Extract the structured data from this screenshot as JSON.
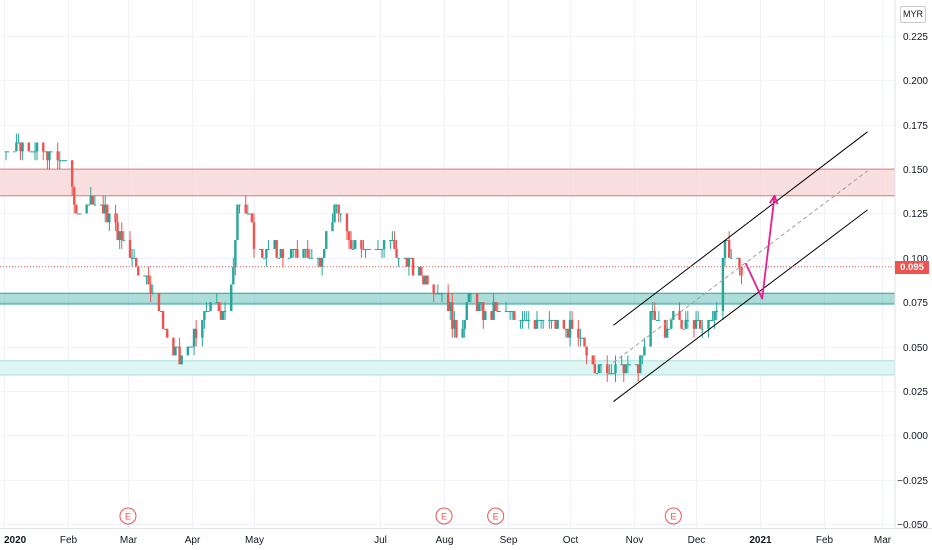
{
  "currency": "MYR",
  "last_price_label": "0.095",
  "colors": {
    "up": "#26a69a",
    "down": "#ef5350",
    "resistance_zone": "#f8d4d6",
    "resistance_line": "#e57373",
    "support_zone": "#26a69a",
    "low_support_zone": "#ddf5f3",
    "channel": "#000000",
    "arrow": "#e91e8c",
    "last_price": "#ef5350",
    "earnings_marker": "#ef5350"
  },
  "chart_data": {
    "type": "candlestick",
    "ylim": [
      -0.05,
      0.235
    ],
    "y_ticks": [
      "0.225",
      "0.200",
      "0.175",
      "0.150",
      "0.125",
      "0.100",
      "0.075",
      "0.050",
      "0.025",
      "0.000",
      "−0.025",
      "−0.050"
    ],
    "y_tick_values": [
      0.225,
      0.2,
      0.175,
      0.15,
      0.125,
      0.1,
      0.075,
      0.05,
      0.025,
      0.0,
      -0.025,
      -0.05
    ],
    "x_ticks": [
      "2020",
      "Feb",
      "Mar",
      "Apr",
      "May",
      "Jul",
      "Aug",
      "Sep",
      "Oct",
      "Nov",
      "Dec",
      "2021",
      "Feb",
      "Mar"
    ],
    "x_tick_dates": [
      "2020-01-01",
      "2020-02-01",
      "2020-03-01",
      "2020-04-01",
      "2020-05-01",
      "2020-07-01",
      "2020-08-01",
      "2020-09-01",
      "2020-10-01",
      "2020-11-01",
      "2020-12-01",
      "2021-01-01",
      "2021-02-01",
      "2021-03-01"
    ],
    "last_price": 0.095,
    "earnings_markers": [
      {
        "label": "E",
        "date": "2020-03-01"
      },
      {
        "label": "E",
        "date": "2020-08-01"
      },
      {
        "label": "E",
        "date": "2020-08-26"
      },
      {
        "label": "E",
        "date": "2020-11-20"
      }
    ],
    "zones": [
      {
        "name": "resistance",
        "from": 0.135,
        "to": 0.15
      },
      {
        "name": "support",
        "from": 0.074,
        "to": 0.08
      },
      {
        "name": "low-support",
        "from": 0.034,
        "to": 0.042
      }
    ],
    "channel": {
      "start_date": "2020-10-22",
      "end_date": "2021-02-22",
      "upper": [
        0.062,
        0.171
      ],
      "middle": [
        0.041,
        0.149
      ],
      "lower": [
        0.019,
        0.127
      ]
    },
    "projection_arrow": [
      {
        "date": "2020-12-25",
        "price": 0.097
      },
      {
        "date": "2021-01-02",
        "price": 0.077
      },
      {
        "date": "2021-01-08",
        "price": 0.135
      }
    ],
    "price_path": [
      [
        "2020-01-02",
        0.16
      ],
      [
        "2020-01-08",
        0.165
      ],
      [
        "2020-01-15",
        0.16
      ],
      [
        "2020-01-24",
        0.158
      ],
      [
        "2020-01-31",
        0.153
      ],
      [
        "2020-02-03",
        0.14
      ],
      [
        "2020-02-06",
        0.12
      ],
      [
        "2020-02-10",
        0.135
      ],
      [
        "2020-02-16",
        0.13
      ],
      [
        "2020-02-22",
        0.12
      ],
      [
        "2020-02-29",
        0.108
      ],
      [
        "2020-03-07",
        0.094
      ],
      [
        "2020-03-12",
        0.085
      ],
      [
        "2020-03-17",
        0.065
      ],
      [
        "2020-03-22",
        0.05
      ],
      [
        "2020-03-26",
        0.042
      ],
      [
        "2020-03-30",
        0.05
      ],
      [
        "2020-04-03",
        0.056
      ],
      [
        "2020-04-08",
        0.07
      ],
      [
        "2020-04-18",
        0.07
      ],
      [
        "2020-04-21",
        0.09
      ],
      [
        "2020-04-23",
        0.135
      ],
      [
        "2020-04-28",
        0.125
      ],
      [
        "2020-05-03",
        0.1
      ],
      [
        "2020-05-10",
        0.105
      ],
      [
        "2020-05-17",
        0.1
      ],
      [
        "2020-05-25",
        0.105
      ],
      [
        "2020-06-01",
        0.097
      ],
      [
        "2020-06-06",
        0.115
      ],
      [
        "2020-06-10",
        0.13
      ],
      [
        "2020-06-15",
        0.11
      ],
      [
        "2020-06-22",
        0.108
      ],
      [
        "2020-06-30",
        0.105
      ],
      [
        "2020-07-05",
        0.11
      ],
      [
        "2020-07-10",
        0.1
      ],
      [
        "2020-07-16",
        0.096
      ],
      [
        "2020-07-22",
        0.088
      ],
      [
        "2020-07-28",
        0.082
      ],
      [
        "2020-08-03",
        0.075
      ],
      [
        "2020-08-07",
        0.055
      ],
      [
        "2020-08-11",
        0.068
      ],
      [
        "2020-08-14",
        0.08
      ],
      [
        "2020-08-20",
        0.07
      ],
      [
        "2020-08-27",
        0.069
      ],
      [
        "2020-09-06",
        0.067
      ],
      [
        "2020-09-14",
        0.065
      ],
      [
        "2020-09-22",
        0.063
      ],
      [
        "2020-10-01",
        0.06
      ],
      [
        "2020-10-06",
        0.052
      ],
      [
        "2020-10-11",
        0.044
      ],
      [
        "2020-10-15",
        0.038
      ],
      [
        "2020-10-22",
        0.037
      ],
      [
        "2020-10-30",
        0.038
      ],
      [
        "2020-11-05",
        0.042
      ],
      [
        "2020-11-09",
        0.07
      ],
      [
        "2020-11-12",
        0.065
      ],
      [
        "2020-11-16",
        0.055
      ],
      [
        "2020-11-20",
        0.07
      ],
      [
        "2020-11-25",
        0.06
      ],
      [
        "2020-12-01",
        0.063
      ],
      [
        "2020-12-06",
        0.062
      ],
      [
        "2020-12-10",
        0.07
      ],
      [
        "2020-12-13",
        0.085
      ],
      [
        "2020-12-15",
        0.11
      ],
      [
        "2020-12-17",
        0.098
      ],
      [
        "2020-12-20",
        0.1
      ],
      [
        "2020-12-23",
        0.095
      ]
    ]
  }
}
